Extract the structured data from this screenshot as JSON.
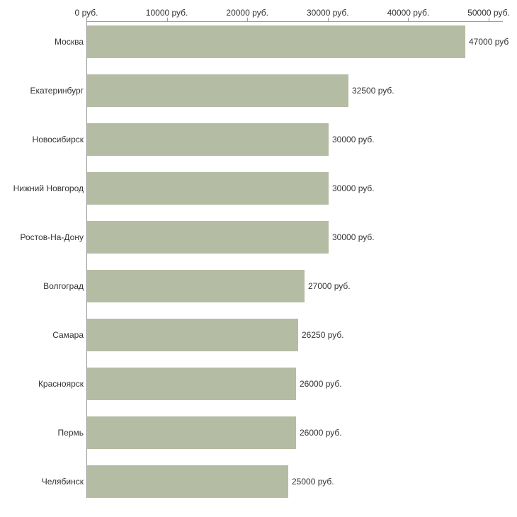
{
  "chart_data": {
    "type": "bar",
    "orientation": "horizontal",
    "title": "",
    "xlabel": "",
    "ylabel": "",
    "xlim": [
      0,
      50000
    ],
    "grid": false,
    "legend": "none",
    "bar_color": "#b4bca3",
    "axis_color": "#999999",
    "text_color": "#333333",
    "x_ticks": [
      {
        "value": 0,
        "label": "0 руб."
      },
      {
        "value": 10000,
        "label": "10000 руб."
      },
      {
        "value": 20000,
        "label": "20000 руб."
      },
      {
        "value": 30000,
        "label": "30000 руб."
      },
      {
        "value": 40000,
        "label": "40000 руб."
      },
      {
        "value": 50000,
        "label": "50000 руб."
      }
    ],
    "categories": [
      "Москва",
      "Екатеринбург",
      "Новосибирск",
      "Нижний Новгород",
      "Ростов-На-Дону",
      "Волгоград",
      "Самара",
      "Красноярск",
      "Пермь",
      "Челябинск"
    ],
    "values": [
      47000,
      32500,
      30000,
      30000,
      30000,
      27000,
      26250,
      26000,
      26000,
      25000
    ],
    "value_labels": [
      "47000 руб",
      "32500 руб.",
      "30000 руб.",
      "30000 руб.",
      "30000 руб.",
      "27000 руб.",
      "26250 руб.",
      "26000 руб.",
      "26000 руб.",
      "25000 руб."
    ]
  }
}
